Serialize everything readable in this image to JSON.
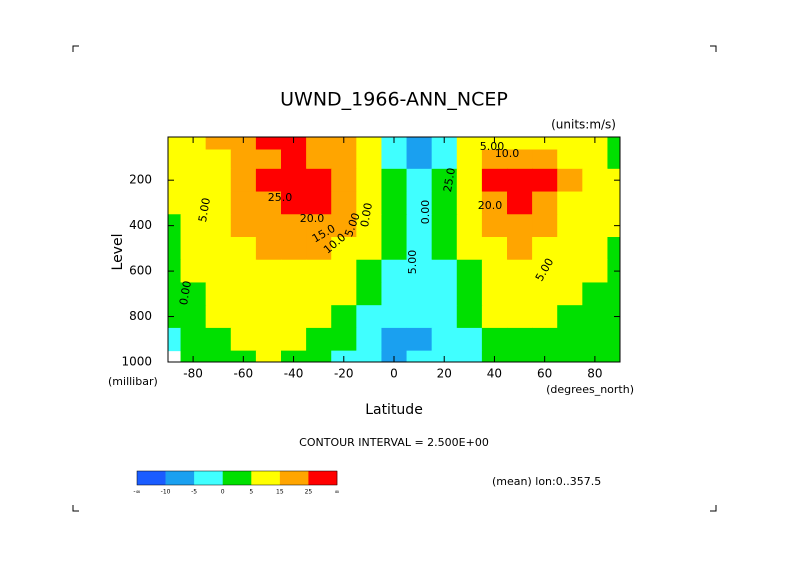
{
  "chart_data": {
    "type": "heatmap",
    "title": "UWND_1966-ANN_NCEP",
    "subtitle": "(units:m/s)",
    "y_label": "Level",
    "y_units": "(millibar)",
    "x_label": "Latitude",
    "x_units": "(degrees_north)",
    "footnote": "CONTOUR INTERVAL = 2.500E+00",
    "region_note": "(mean) lon:0..357.5",
    "x": [
      -90,
      -80,
      -70,
      -60,
      -50,
      -40,
      -30,
      -20,
      -10,
      0,
      10,
      20,
      30,
      40,
      50,
      60,
      70,
      80,
      90
    ],
    "levels": [
      30,
      100,
      200,
      300,
      400,
      500,
      600,
      700,
      800,
      900,
      1000
    ],
    "values": [
      [
        5,
        10,
        15,
        20,
        25,
        27,
        22,
        15,
        5,
        -5,
        -10,
        -5,
        5,
        10,
        12,
        10,
        8,
        5,
        2
      ],
      [
        5,
        8,
        12,
        18,
        24,
        26,
        24,
        18,
        8,
        -2,
        -8,
        -3,
        8,
        18,
        20,
        18,
        12,
        8,
        4
      ],
      [
        5,
        8,
        12,
        18,
        26,
        30,
        30,
        24,
        12,
        0,
        -5,
        0,
        12,
        26,
        30,
        26,
        15,
        10,
        5
      ],
      [
        5,
        8,
        12,
        18,
        22,
        26,
        26,
        22,
        10,
        0,
        -3,
        0,
        10,
        22,
        26,
        22,
        14,
        10,
        5
      ],
      [
        4,
        7,
        10,
        15,
        18,
        20,
        20,
        16,
        8,
        0,
        -2,
        0,
        8,
        16,
        20,
        18,
        12,
        8,
        5
      ],
      [
        3,
        6,
        9,
        13,
        15,
        16,
        15,
        12,
        6,
        0,
        -2,
        0,
        6,
        12,
        15,
        14,
        10,
        7,
        4
      ],
      [
        2,
        5,
        8,
        11,
        12,
        12,
        11,
        8,
        4,
        -1,
        -3,
        -1,
        4,
        9,
        11,
        10,
        8,
        6,
        3
      ],
      [
        1,
        3,
        7,
        9,
        10,
        10,
        8,
        5,
        1,
        -2,
        -4,
        -2,
        2,
        7,
        8,
        7,
        6,
        4,
        2
      ],
      [
        0,
        2,
        5,
        8,
        8,
        7,
        5,
        2,
        -2,
        -4,
        -5,
        -3,
        0,
        5,
        6,
        5,
        4,
        3,
        1
      ],
      [
        -1,
        1,
        3,
        6,
        7,
        5,
        3,
        0,
        -4,
        -6,
        -6,
        -5,
        -2,
        3,
        4,
        3,
        2,
        2,
        1
      ],
      [
        null,
        0,
        2,
        4,
        5,
        4,
        1,
        -2,
        -5,
        -6,
        -5,
        -5,
        -3,
        1,
        2,
        1,
        1,
        1,
        1
      ]
    ],
    "xlim": [
      -90,
      90
    ],
    "xticks": [
      -80,
      -60,
      -40,
      -20,
      0,
      20,
      40,
      60,
      80
    ],
    "ylim": [
      1000,
      10
    ],
    "yticks": [
      200,
      400,
      600,
      800,
      1000
    ],
    "color_bounds": [
      -10,
      -5,
      0,
      5,
      15,
      25
    ],
    "color_end_labels": [
      "-∞",
      "∞"
    ],
    "colors": [
      "#1a5cff",
      "#1aa0f0",
      "#40ffff",
      "#00e000",
      "#ffff00",
      "#ffa500",
      "#ff0000"
    ],
    "contour_labels": [
      "25.0",
      "20.0",
      "15.0",
      "10.0",
      "5.00",
      "0.00",
      "5.00",
      "0.00",
      "20.0",
      "25.0",
      "5.00",
      "10.0",
      "5.00",
      "5.00",
      "0.00"
    ]
  }
}
